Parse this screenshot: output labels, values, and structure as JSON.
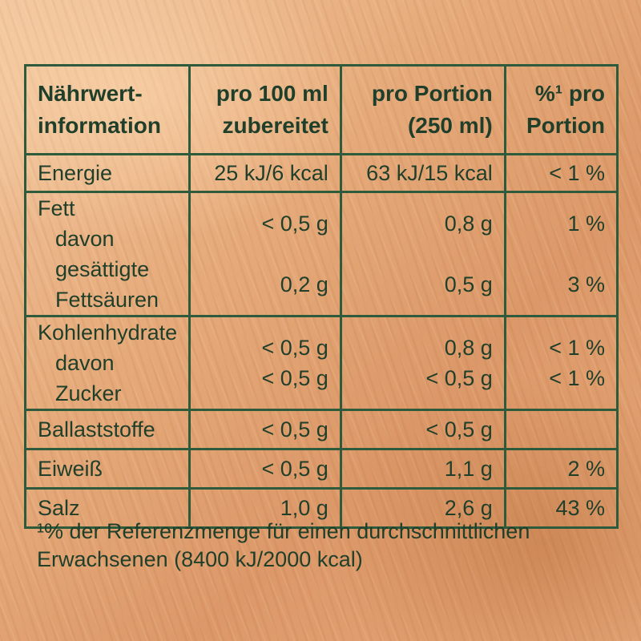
{
  "table": {
    "header": {
      "col1": [
        "Nährwert-",
        "information"
      ],
      "col2": [
        "pro 100 ml",
        "zubereitet"
      ],
      "col3": [
        "pro Portion",
        "(250 ml)"
      ],
      "col4_sup": "%¹ pro",
      "col4_line2": "Portion"
    },
    "rows": [
      {
        "lines": [
          "Energie"
        ],
        "per100": [
          "25 kJ/6 kcal"
        ],
        "portion": [
          "63 kJ/15 kcal"
        ],
        "pct": [
          "< 1 %"
        ]
      },
      {
        "lines": [
          "Fett",
          "davon gesättigte",
          "Fettsäuren"
        ],
        "per100": [
          "< 0,5 g",
          "",
          "0,2 g"
        ],
        "portion": [
          "0,8 g",
          "",
          "0,5 g"
        ],
        "pct": [
          "1 %",
          "",
          "3 %"
        ]
      },
      {
        "lines": [
          "Kohlenhydrate",
          "davon Zucker"
        ],
        "per100": [
          "< 0,5 g",
          "< 0,5 g"
        ],
        "portion": [
          "0,8 g",
          "< 0,5 g"
        ],
        "pct": [
          "< 1 %",
          "< 1 %"
        ]
      },
      {
        "lines": [
          "Ballaststoffe"
        ],
        "per100": [
          "< 0,5 g"
        ],
        "portion": [
          "< 0,5 g"
        ],
        "pct": [
          ""
        ]
      },
      {
        "lines": [
          "Eiweiß"
        ],
        "per100": [
          "< 0,5 g"
        ],
        "portion": [
          "1,1 g"
        ],
        "pct": [
          "2 %"
        ]
      },
      {
        "lines": [
          "Salz"
        ],
        "per100": [
          "1,0 g"
        ],
        "portion": [
          "2,6 g"
        ],
        "pct": [
          "43 %"
        ]
      }
    ]
  },
  "footnote": {
    "line1": "¹% der Referenzmenge für einen durchschnittlichen",
    "line2": "Erwachsenen (8400 kJ/2000 kcal)"
  }
}
